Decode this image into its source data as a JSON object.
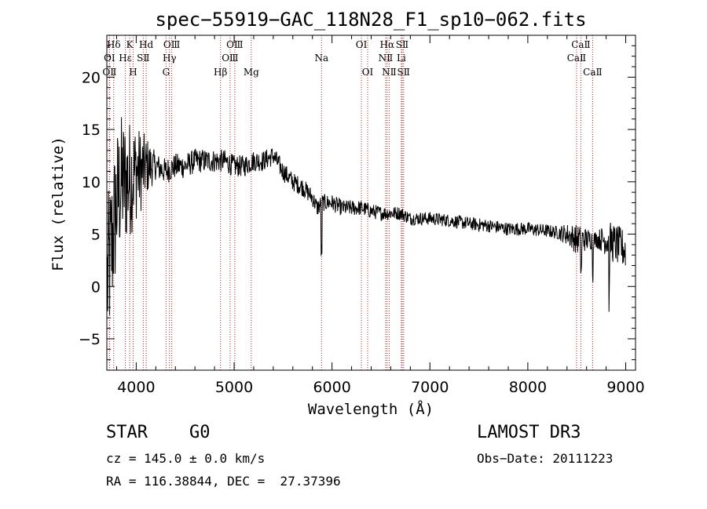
{
  "chart_data": {
    "type": "line",
    "title": "spec−55919−GAC_118N28_F1_sp10−062.fits",
    "xlabel": "Wavelength (Å)",
    "ylabel": "Flux (relative)",
    "xlim": [
      3700,
      9100
    ],
    "ylim": [
      -8,
      24
    ],
    "xticks": [
      4000,
      5000,
      6000,
      7000,
      8000,
      9000
    ],
    "yticks": [
      -5,
      0,
      5,
      10,
      15,
      20
    ],
    "ytick_labels": [
      "−5",
      "0",
      "5",
      "10",
      "15",
      "20"
    ],
    "series": [
      {
        "name": "flux",
        "anchors": {
          "x": [
            3700,
            3750,
            3800,
            3850,
            3900,
            3950,
            4000,
            4050,
            4100,
            4150,
            4200,
            4300,
            4400,
            4500,
            4600,
            4700,
            4800,
            4900,
            5000,
            5100,
            5200,
            5300,
            5400,
            5500,
            5600,
            5700,
            5800,
            5850,
            5900,
            5950,
            6000,
            6100,
            6200,
            6300,
            6400,
            6500,
            6600,
            6700,
            6800,
            7000,
            7200,
            7400,
            7600,
            7800,
            8000,
            8200,
            8400,
            8500,
            8600,
            8700,
            8800,
            8900,
            9000
          ],
          "y": [
            0,
            4,
            8,
            10,
            10,
            10.5,
            11,
            11,
            11.5,
            11.5,
            11.5,
            11,
            11.5,
            11.5,
            12,
            12,
            12,
            12,
            11.5,
            11.5,
            12,
            12,
            12.5,
            11,
            10,
            9.5,
            8.5,
            7.5,
            8,
            8,
            8,
            7.5,
            7.5,
            7.5,
            7.2,
            7,
            7,
            7,
            6.5,
            6.5,
            6.3,
            6.0,
            5.8,
            5.5,
            5.5,
            5.3,
            5.0,
            4.5,
            4.5,
            4.5,
            4.5,
            4.0,
            3.5
          ]
        },
        "noise_profile": {
          "x": [
            3700,
            3950,
            4200,
            6000,
            6800,
            8300,
            8500,
            8700,
            8850,
            9000
          ],
          "amplitude": [
            10,
            7,
            1.6,
            1.0,
            0.8,
            0.8,
            1.8,
            1.0,
            2.4,
            2.4
          ]
        },
        "dips": [
          {
            "x": 5893,
            "depth": 4.5
          },
          {
            "x": 8664,
            "depth": 3.5
          },
          {
            "x": 8830,
            "depth": 5.5
          },
          {
            "x": 8545,
            "depth": 3.0
          }
        ]
      }
    ],
    "spectral_lines": [
      {
        "label": "Hδ",
        "x": 3770,
        "row": 0
      },
      {
        "label": "OⅠ",
        "x": 3727,
        "row": 1
      },
      {
        "label": "OⅡ",
        "x": 3727,
        "row": 2
      },
      {
        "label": "Hε",
        "x": 3889,
        "row": 1
      },
      {
        "label": "K",
        "x": 3934,
        "row": 0
      },
      {
        "label": "H",
        "x": 3969,
        "row": 2
      },
      {
        "label": "SⅡ",
        "x": 4072,
        "row": 1
      },
      {
        "label": "Hd",
        "x": 4102,
        "row": 0
      },
      {
        "label": "OⅢ",
        "x": 4363,
        "row": 0
      },
      {
        "label": "Hγ",
        "x": 4340,
        "row": 1
      },
      {
        "label": "G",
        "x": 4305,
        "row": 2
      },
      {
        "label": "Hβ",
        "x": 4861,
        "row": 2
      },
      {
        "label": "OⅢ",
        "x": 5007,
        "row": 0
      },
      {
        "label": "OⅢ",
        "x": 4959,
        "row": 1
      },
      {
        "label": "Mg",
        "x": 5175,
        "row": 2
      },
      {
        "label": "Na",
        "x": 5893,
        "row": 1
      },
      {
        "label": "OⅠ",
        "x": 6300,
        "row": 0
      },
      {
        "label": "OⅠ",
        "x": 6364,
        "row": 2
      },
      {
        "label": "Hα",
        "x": 6563,
        "row": 0
      },
      {
        "label": "NⅡ",
        "x": 6548,
        "row": 1
      },
      {
        "label": "NⅡ",
        "x": 6584,
        "row": 2
      },
      {
        "label": "SⅡ",
        "x": 6717,
        "row": 0
      },
      {
        "label": "Li",
        "x": 6708,
        "row": 1
      },
      {
        "label": "SⅡ",
        "x": 6731,
        "row": 2
      },
      {
        "label": "CaⅡ",
        "x": 8542,
        "row": 0
      },
      {
        "label": "CaⅡ",
        "x": 8498,
        "row": 1
      },
      {
        "label": "CaⅡ",
        "x": 8662,
        "row": 2
      }
    ],
    "colors": {
      "line": "#000000",
      "marker": "#b22222",
      "axis": "#000000"
    }
  },
  "info": {
    "object_class": "STAR",
    "subclass": "G0",
    "survey": "LAMOST DR3",
    "redshift": "cz = 145.0 ± 0.0 km/s",
    "obs_date": "Obs−Date: 20111223",
    "coords": "RA = 116.38844, DEC =  27.37396"
  }
}
